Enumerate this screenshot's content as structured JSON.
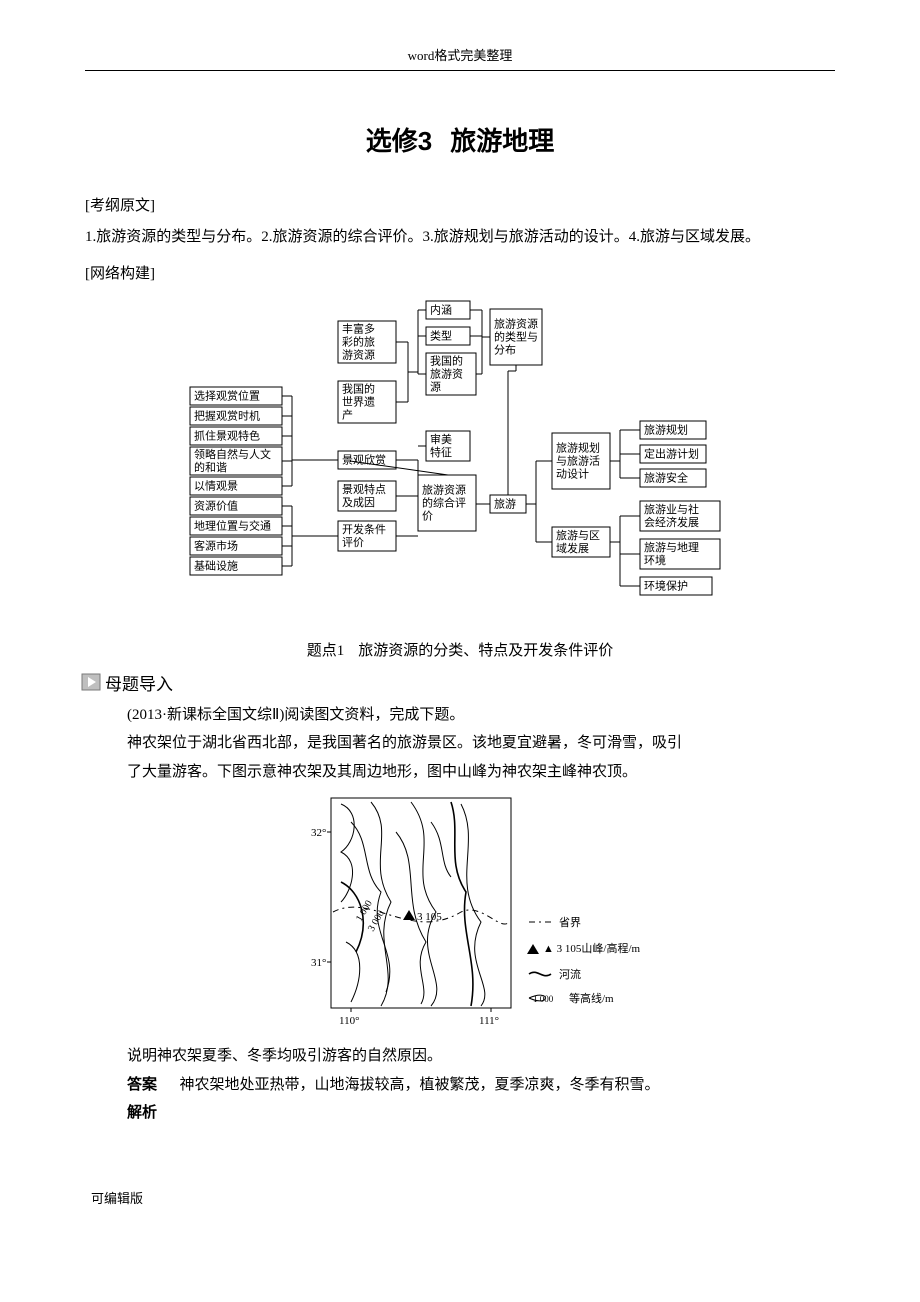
{
  "running_header": "word格式完美整理",
  "title_a": "选修3",
  "title_b": "旅游地理",
  "syllabus_label": "[考纲原文]",
  "syllabus_text": "1.旅游资源的类型与分布。2.旅游资源的综合评价。3.旅游规划与旅游活动的设计。4.旅游与区域发展。",
  "network_label": "[网络构建]",
  "diagram": {
    "left_col": [
      "选择观赏位置",
      "把握观赏时机",
      "抓住景观特色",
      "领略自然与人文的和谐",
      "以情观景",
      "资源价值",
      "地理位置与交通",
      "客源市场",
      "基础设施"
    ],
    "mid_left": [
      {
        "t": "丰富多彩的旅游资源"
      },
      {
        "t": "我国的世界遗产"
      },
      {
        "t": "景观欣赏"
      },
      {
        "t": "景观特点及成因"
      },
      {
        "t": "开发条件评价"
      }
    ],
    "mid_center": [
      {
        "t": "内涵"
      },
      {
        "t": "类型"
      },
      {
        "t": "我国的旅游资源"
      },
      {
        "t": "审美特征"
      },
      {
        "t": "旅游资源的综合评价"
      }
    ],
    "center": "旅游",
    "right_top": "旅游资源的类型与分布",
    "right_mid": [
      "旅游规划",
      "定出游计划",
      "旅游安全"
    ],
    "right_mid_hub": "旅游规划与旅游活动设计",
    "right_low_hub": "旅游与区域发展",
    "right_low": [
      "旅游业与社会经济发展",
      "旅游与地理环境",
      "环境保护"
    ],
    "box_stroke": "#000000",
    "line_stroke": "#000000",
    "font_size": 11
  },
  "topic_no": "题点1",
  "topic_title": "旅游资源的分类、特点及开发条件评价",
  "mother_label": "母题导入",
  "question_source": "(2013·新课标全国文综Ⅱ)阅读图文资料，完成下题。",
  "question_body1": "神农架位于湖北省西北部，是我国著名的旅游景区。该地夏宜避暑，冬可滑雪，吸引",
  "question_body2": "了大量游客。下图示意神农架及其周边地形，图中山峰为神农架主峰神农顶。",
  "map": {
    "axis_lon": [
      "110°",
      "111°"
    ],
    "axis_lat": [
      "31°",
      "32°"
    ],
    "peak_label": "3 105",
    "contour_labels": [
      "3 000",
      "1 000"
    ],
    "legend": {
      "border": "省界",
      "peak": "3 105山峰/高程/m",
      "river": "河流",
      "contour_val": "1 000",
      "contour": "等高线/m"
    },
    "line_color": "#000000"
  },
  "question_ask": "说明神农架夏季、冬季均吸引游客的自然原因。",
  "answer_label": "答案",
  "answer_text": "神农架地处亚热带，山地海拔较高，植被繁茂，夏季凉爽，冬季有积雪。",
  "analysis_label": "解析",
  "footer": "可编辑版"
}
